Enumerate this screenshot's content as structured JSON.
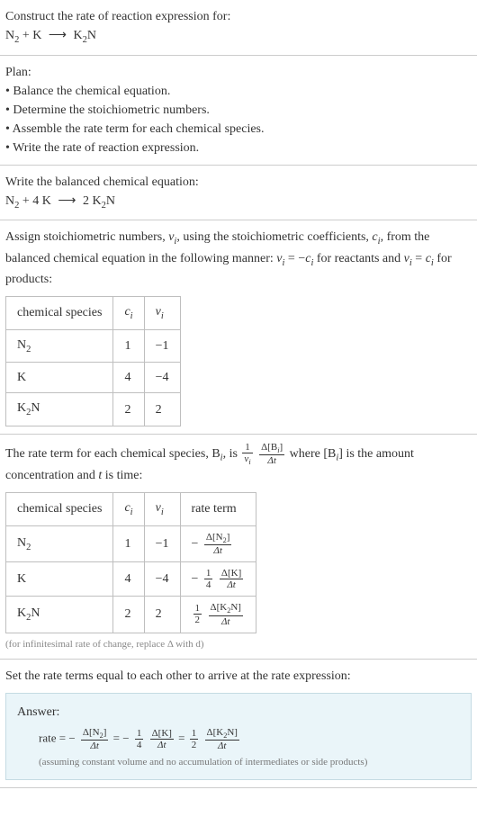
{
  "intro": {
    "prompt": "Construct the rate of reaction expression for:",
    "eq_lhs1": "N",
    "eq_lhs1_sub": "2",
    "eq_plus": " + K ",
    "eq_arrow": "⟶",
    "eq_rhs1": " K",
    "eq_rhs1_sub": "2",
    "eq_rhs2": "N"
  },
  "plan": {
    "heading": "Plan:",
    "b1": "• Balance the chemical equation.",
    "b2": "• Determine the stoichiometric numbers.",
    "b3": "• Assemble the rate term for each chemical species.",
    "b4": "• Write the rate of reaction expression."
  },
  "balanced": {
    "heading": "Write the balanced chemical equation:",
    "lhs1": "N",
    "lhs1_sub": "2",
    "plus4k": " + 4 K ",
    "arrow": "⟶",
    "rhs_coef": " 2 K",
    "rhs_sub": "2",
    "rhs_n": "N"
  },
  "stoich": {
    "text_a": "Assign stoichiometric numbers, ",
    "nu_i": "ν",
    "sub_i": "i",
    "text_b": ", using the stoichiometric coefficients, ",
    "c_i": "c",
    "text_c": ", from the balanced chemical equation in the following manner: ",
    "eq1_lhs": "ν",
    "eq1_eq": " = −",
    "eq1_rhs": "c",
    "text_d": " for reactants and ",
    "eq2_lhs": "ν",
    "eq2_eq": " = ",
    "eq2_rhs": "c",
    "text_e": " for products:",
    "table": {
      "h1": "chemical species",
      "h2": "c",
      "h2_sub": "i",
      "h3": "ν",
      "h3_sub": "i",
      "r1": {
        "sp_a": "N",
        "sp_sub": "2",
        "c": "1",
        "nu": "−1"
      },
      "r2": {
        "sp": "K",
        "c": "4",
        "nu": "−4"
      },
      "r3": {
        "sp_a": "K",
        "sp_sub": "2",
        "sp_b": "N",
        "c": "2",
        "nu": "2"
      }
    }
  },
  "rateterm": {
    "text_a": "The rate term for each chemical species, B",
    "sub_i": "i",
    "text_b": ", is ",
    "frac1_num": "1",
    "frac1_den_a": "ν",
    "frac1_den_sub": "i",
    "frac2_num_a": "Δ[B",
    "frac2_num_sub": "i",
    "frac2_num_b": "]",
    "frac2_den": "Δt",
    "text_c": " where [B",
    "text_d": "] is the amount concentration and ",
    "t": "t",
    "text_e": " is time:",
    "table": {
      "h1": "chemical species",
      "h2": "c",
      "h2_sub": "i",
      "h3": "ν",
      "h3_sub": "i",
      "h4": "rate term",
      "r1": {
        "sp_a": "N",
        "sp_sub": "2",
        "c": "1",
        "nu": "−1",
        "neg": "−",
        "num_a": "Δ[N",
        "num_sub": "2",
        "num_b": "]",
        "den": "Δt"
      },
      "r2": {
        "sp": "K",
        "c": "4",
        "nu": "−4",
        "neg": "−",
        "f1_num": "1",
        "f1_den": "4",
        "num": "Δ[K]",
        "den": "Δt"
      },
      "r3": {
        "sp_a": "K",
        "sp_sub": "2",
        "sp_b": "N",
        "c": "2",
        "nu": "2",
        "f1_num": "1",
        "f1_den": "2",
        "num_a": "Δ[K",
        "num_sub": "2",
        "num_b": "N]",
        "den": "Δt"
      }
    },
    "footnote": "(for infinitesimal rate of change, replace Δ with d)"
  },
  "final": {
    "heading": "Set the rate terms equal to each other to arrive at the rate expression:",
    "answer_label": "Answer:",
    "rate": "rate = ",
    "neg": "−",
    "t1_num_a": "Δ[N",
    "t1_num_sub": "2",
    "t1_num_b": "]",
    "t1_den": "Δt",
    "eq": " = ",
    "t2_f1_num": "1",
    "t2_f1_den": "4",
    "t2_num": "Δ[K]",
    "t2_den": "Δt",
    "t3_f1_num": "1",
    "t3_f1_den": "2",
    "t3_num_a": "Δ[K",
    "t3_num_sub": "2",
    "t3_num_b": "N]",
    "t3_den": "Δt",
    "note": "(assuming constant volume and no accumulation of intermediates or side products)"
  }
}
